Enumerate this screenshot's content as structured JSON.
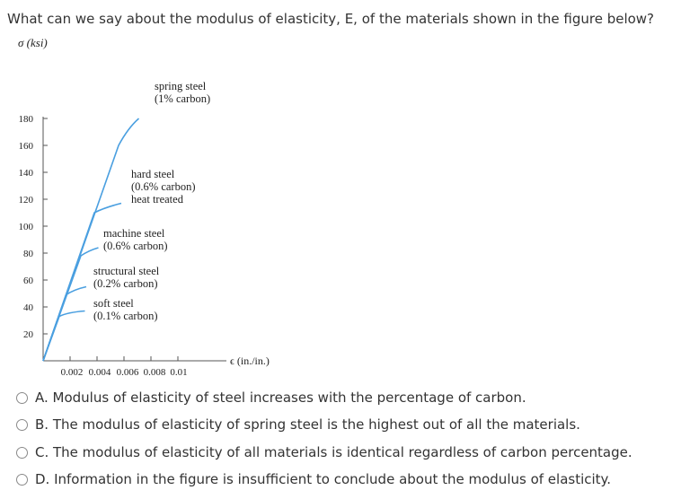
{
  "question": "What can we say about the modulus of elasticity, E, of the materials shown in the figure below?",
  "chart_data": {
    "type": "line",
    "ylabel": "σ (ksi)",
    "xlabel": "ϵ (in./in.)",
    "ylim": [
      0,
      180
    ],
    "xlim": [
      0,
      0.01
    ],
    "y_ticks": [
      "20",
      "40",
      "60",
      "80",
      "100",
      "120",
      "140",
      "160",
      "180"
    ],
    "x_ticks": [
      "0.002",
      "0.004",
      "0.006",
      "0.008",
      "0.01"
    ],
    "series": [
      {
        "name": "spring steel (1% carbon)",
        "lines": [
          "spring steel",
          "(1% carbon)"
        ],
        "x": [
          0,
          0.0056,
          0.0063,
          0.0071
        ],
        "y": [
          0,
          160,
          173,
          180
        ]
      },
      {
        "name": "hard steel (0.6% carbon) heat treated",
        "lines": [
          "hard steel",
          "(0.6% carbon)",
          "heat treated"
        ],
        "x": [
          0,
          0.0038,
          0.0046,
          0.0058
        ],
        "y": [
          0,
          110,
          114,
          117
        ]
      },
      {
        "name": "machine steel (0.6% carbon)",
        "lines": [
          "machine steel",
          "(0.6% carbon)"
        ],
        "x": [
          0,
          0.0028,
          0.0034,
          0.0041
        ],
        "y": [
          0,
          78,
          82,
          84
        ]
      },
      {
        "name": "structural steel (0.2% carbon)",
        "lines": [
          "structural steel",
          "(0.2% carbon)"
        ],
        "x": [
          0,
          0.0017,
          0.0023,
          0.0032
        ],
        "y": [
          0,
          49,
          53,
          55
        ]
      },
      {
        "name": "soft steel (0.1% carbon)",
        "lines": [
          "soft steel",
          "(0.1% carbon)"
        ],
        "x": [
          0,
          0.0012,
          0.0018,
          0.0031
        ],
        "y": [
          0,
          33,
          36,
          37
        ]
      }
    ],
    "line_color": "#4a9fe0",
    "axis_color": "#555555"
  },
  "options": [
    {
      "label": "A. Modulus of elasticity of steel increases with the percentage of carbon."
    },
    {
      "label": "B. The modulus of elasticity of spring steel is the highest out of all the materials."
    },
    {
      "label": "C. The modulus of elasticity of all materials is identical regardless of carbon percentage."
    },
    {
      "label": "D. Information in the figure is insufficient to conclude about the modulus of elasticity."
    }
  ]
}
